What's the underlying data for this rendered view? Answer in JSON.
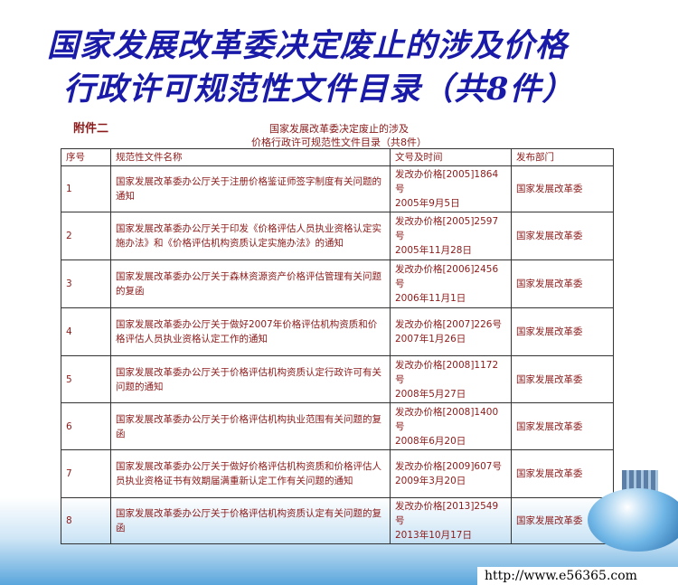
{
  "slide": {
    "title_line1": "国家发展改革委决定废止的涉及价格",
    "title_line2": "行政许可规范性文件目录（共8件）"
  },
  "doc": {
    "attachment": "附件二",
    "subtitle_line1": "国家发展改革委决定废止的涉及",
    "subtitle_line2": "价格行政许可规范性文件目录（共8件）"
  },
  "table": {
    "headers": [
      "序号",
      "规范性文件名称",
      "文号及时间",
      "发布部门"
    ],
    "rows": [
      {
        "no": "1",
        "name": "国家发展改革委办公厅关于注册价格鉴证师签字制度有关问题的通知",
        "doc_no": "发改办价格[2005]1864号",
        "date": "2005年9月5日",
        "dept": "国家发展改革委"
      },
      {
        "no": "2",
        "name": "国家发展改革委办公厅关于印发《价格评估人员执业资格认定实施办法》和《价格评估机构资质认定实施办法》的通知",
        "doc_no": "发改办价格[2005]2597号",
        "date": "2005年11月28日",
        "dept": "国家发展改革委"
      },
      {
        "no": "3",
        "name": "国家发展改革委办公厅关于森林资源资产价格评估管理有关问题的复函",
        "doc_no": "发改办价格[2006]2456号",
        "date": "2006年11月1日",
        "dept": "国家发展改革委"
      },
      {
        "no": "4",
        "name": "国家发展改革委办公厅关于做好2007年价格评估机构资质和价格评估人员执业资格认定工作的通知",
        "doc_no": "发改办价格[2007]226号",
        "date": "2007年1月26日",
        "dept": "国家发展改革委"
      },
      {
        "no": "5",
        "name": "国家发展改革委办公厅关于价格评估机构资质认定行政许可有关问题的通知",
        "doc_no": "发改办价格[2008]1172号",
        "date": "2008年5月27日",
        "dept": "国家发展改革委"
      },
      {
        "no": "6",
        "name": "国家发展改革委办公厅关于价格评估机构执业范围有关问题的复函",
        "doc_no": "发改办价格[2008]1400号",
        "date": "2008年6月20日",
        "dept": "国家发展改革委"
      },
      {
        "no": "7",
        "name": "国家发展改革委办公厅关于做好价格评估机构资质和价格评估人员执业资格证书有效期届满重新认定工作有关问题的通知",
        "doc_no": "发改办价格[2009]607号",
        "date": "2009年3月20日",
        "dept": "国家发展改革委"
      },
      {
        "no": "8",
        "name": "国家发展改革委办公厅关于价格评估机构资质认定有关问题的复函",
        "doc_no": "发改办价格[2013]2549号",
        "date": "2013年10月17日",
        "dept": "国家发展改革委"
      }
    ]
  },
  "footer": {
    "url": "http://www.e56365.com"
  }
}
